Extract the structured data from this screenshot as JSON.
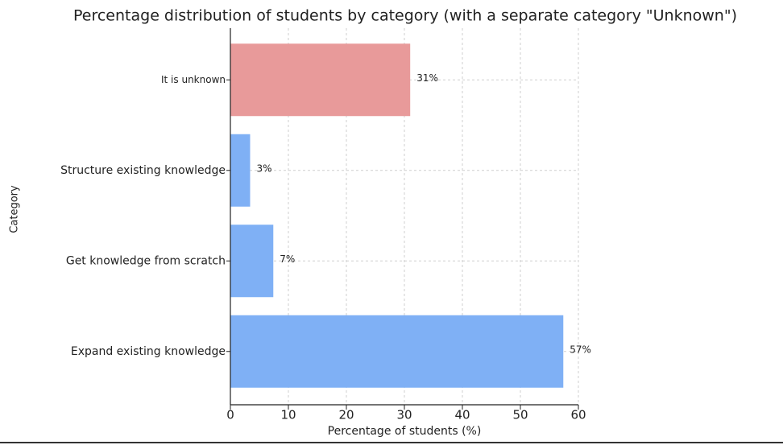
{
  "chart_data": {
    "type": "barh",
    "title": "Percentage distribution of students by category (with a separate category \"Unknown\")",
    "xlabel": "Percentage of students (%)",
    "ylabel": "Category",
    "categories": [
      "It is unknown",
      "Structure existing knowledge",
      "Get knowledge from scratch",
      "Expand existing knowledge"
    ],
    "values": [
      31,
      3.4,
      7.4,
      57.4
    ],
    "value_labels": [
      "31%",
      "3%",
      "7%",
      "57%"
    ],
    "colors": [
      "#e89a9a",
      "#7fb0f5",
      "#7fb0f5",
      "#7fb0f5"
    ],
    "xlim": [
      0,
      60
    ],
    "xticks": [
      0,
      10,
      20,
      30,
      40,
      50,
      60
    ],
    "grid": true
  }
}
